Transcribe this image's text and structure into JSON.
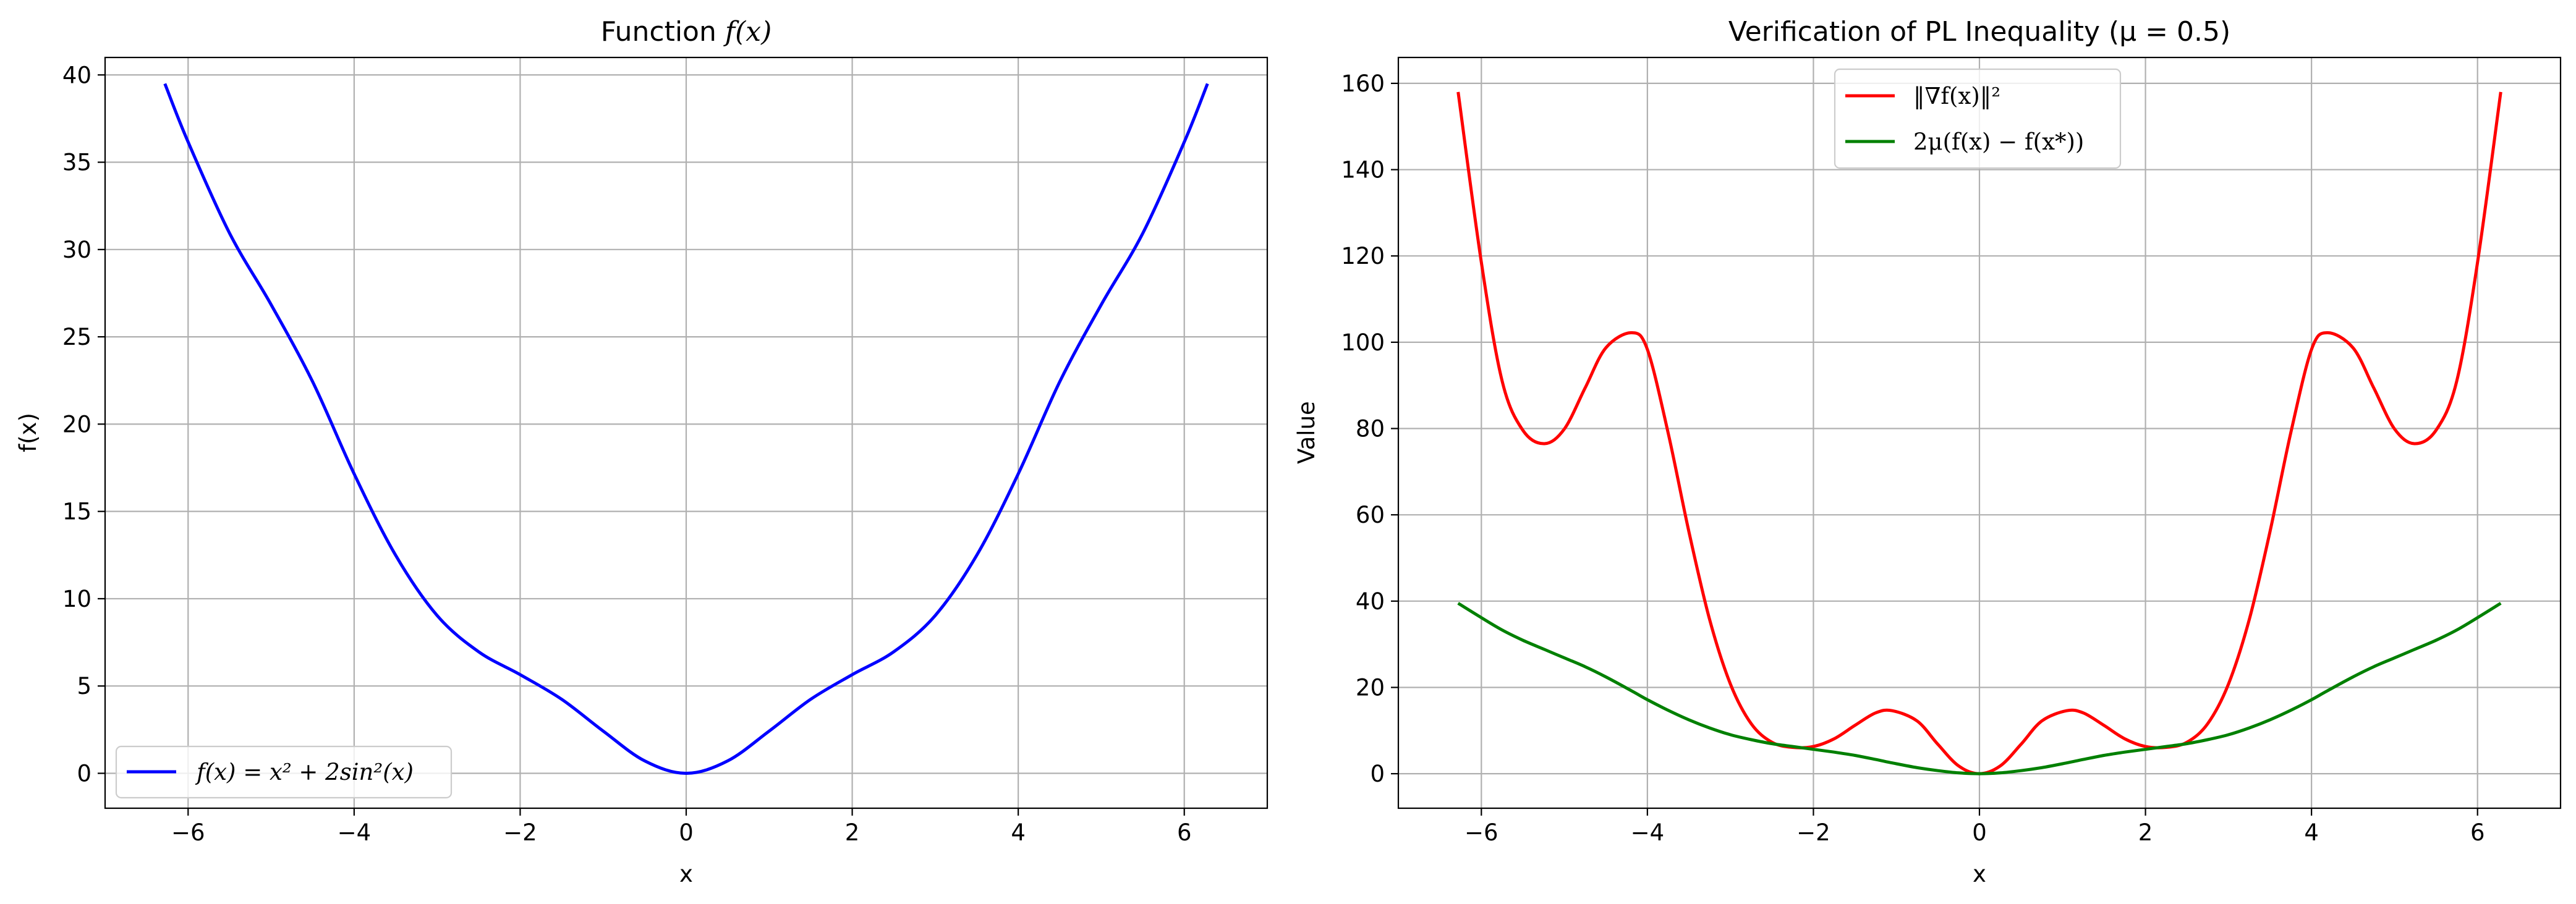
{
  "chart_data": [
    {
      "type": "line",
      "title_prefix": "Function ",
      "title_math": "f(x)",
      "title_suffix": "",
      "xlabel": "x",
      "ylabel": "f(x)",
      "xlim": [
        -7,
        7
      ],
      "ylim": [
        -2,
        41
      ],
      "xticks": [
        -6,
        -4,
        -2,
        0,
        2,
        4,
        6
      ],
      "yticks": [
        0,
        5,
        10,
        15,
        20,
        25,
        30,
        35,
        40
      ],
      "xtick_labels": [
        "−6",
        "−4",
        "−2",
        "0",
        "2",
        "4",
        "6"
      ],
      "ytick_labels": [
        "0",
        "5",
        "10",
        "15",
        "20",
        "25",
        "30",
        "35",
        "40"
      ],
      "grid": true,
      "legend_position": "lower-left",
      "x": [
        -6.28,
        -6.0,
        -5.5,
        -5.0,
        -4.5,
        -4.0,
        -3.5,
        -3.0,
        -2.5,
        -2.0,
        -1.5,
        -1.0,
        -0.5,
        0.0,
        0.5,
        1.0,
        1.5,
        2.0,
        2.5,
        3.0,
        3.5,
        4.0,
        4.5,
        5.0,
        5.5,
        6.0,
        6.28
      ],
      "series": [
        {
          "name": "f(x) = x² + 2sin²(x)",
          "color": "#0000ff",
          "values": [
            39.5,
            36.16,
            30.93,
            26.84,
            22.43,
            17.15,
            12.49,
            9.04,
            6.96,
            5.65,
            4.24,
            2.42,
            0.71,
            0.0,
            0.71,
            2.42,
            4.24,
            5.65,
            6.96,
            9.04,
            12.49,
            17.15,
            22.43,
            26.84,
            30.93,
            36.16,
            39.5
          ]
        }
      ]
    },
    {
      "type": "line",
      "title": "Verification of PL Inequality (μ = 0.5)",
      "xlabel": "x",
      "ylabel": "Value",
      "xlim": [
        -7,
        7
      ],
      "ylim": [
        -8,
        166
      ],
      "xticks": [
        -6,
        -4,
        -2,
        0,
        2,
        4,
        6
      ],
      "yticks": [
        0,
        20,
        40,
        60,
        80,
        100,
        120,
        140,
        160
      ],
      "xtick_labels": [
        "−6",
        "−4",
        "−2",
        "0",
        "2",
        "4",
        "6"
      ],
      "ytick_labels": [
        "0",
        "20",
        "40",
        "60",
        "80",
        "100",
        "120",
        "140",
        "160"
      ],
      "grid": true,
      "legend_position": "upper-center",
      "x": [
        -6.28,
        -6.0,
        -5.75,
        -5.5,
        -5.24,
        -5.0,
        -4.75,
        -4.5,
        -4.19,
        -4.0,
        -3.75,
        -3.5,
        -3.25,
        -3.0,
        -2.75,
        -2.5,
        -2.25,
        -2.0,
        -1.75,
        -1.5,
        -1.25,
        -1.05,
        -0.75,
        -0.5,
        -0.25,
        0.0,
        0.25,
        0.5,
        0.75,
        1.05,
        1.25,
        1.5,
        1.75,
        2.0,
        2.25,
        2.5,
        2.75,
        3.0,
        3.25,
        3.5,
        3.75,
        4.0,
        4.19,
        4.5,
        4.75,
        5.0,
        5.24,
        5.5,
        5.75,
        6.0,
        6.28
      ],
      "series": [
        {
          "name": "‖∇f(x)‖²",
          "color": "#ff0000",
          "values": [
            158.0,
            118.5,
            91.0,
            79.6,
            76.5,
            79.9,
            89.4,
            98.7,
            102.2,
            98.3,
            79.0,
            56.1,
            35.7,
            20.8,
            11.6,
            7.3,
            6.1,
            6.3,
            8.1,
            11.2,
            14.1,
            14.6,
            12.2,
            6.8,
            1.8,
            0.0,
            1.8,
            6.8,
            12.2,
            14.6,
            14.1,
            11.2,
            8.1,
            6.3,
            6.1,
            7.3,
            11.6,
            20.8,
            35.7,
            56.1,
            79.0,
            98.3,
            102.2,
            98.7,
            89.4,
            79.9,
            76.5,
            79.6,
            91.0,
            118.5,
            158.0
          ]
        },
        {
          "name": "2μ(f(x) − f(x*))",
          "color": "#008000",
          "values": [
            39.5,
            36.16,
            33.3,
            30.93,
            28.8,
            26.84,
            24.8,
            22.43,
            19.2,
            17.15,
            14.7,
            12.49,
            10.6,
            9.04,
            7.9,
            6.96,
            6.3,
            5.65,
            5.0,
            4.24,
            3.3,
            2.5,
            1.4,
            0.71,
            0.19,
            0.0,
            0.19,
            0.71,
            1.4,
            2.5,
            3.3,
            4.24,
            5.0,
            5.65,
            6.3,
            6.96,
            7.9,
            9.04,
            10.6,
            12.49,
            14.7,
            17.15,
            19.2,
            22.43,
            24.8,
            26.84,
            28.8,
            30.93,
            33.3,
            36.16,
            39.5
          ]
        }
      ]
    }
  ]
}
